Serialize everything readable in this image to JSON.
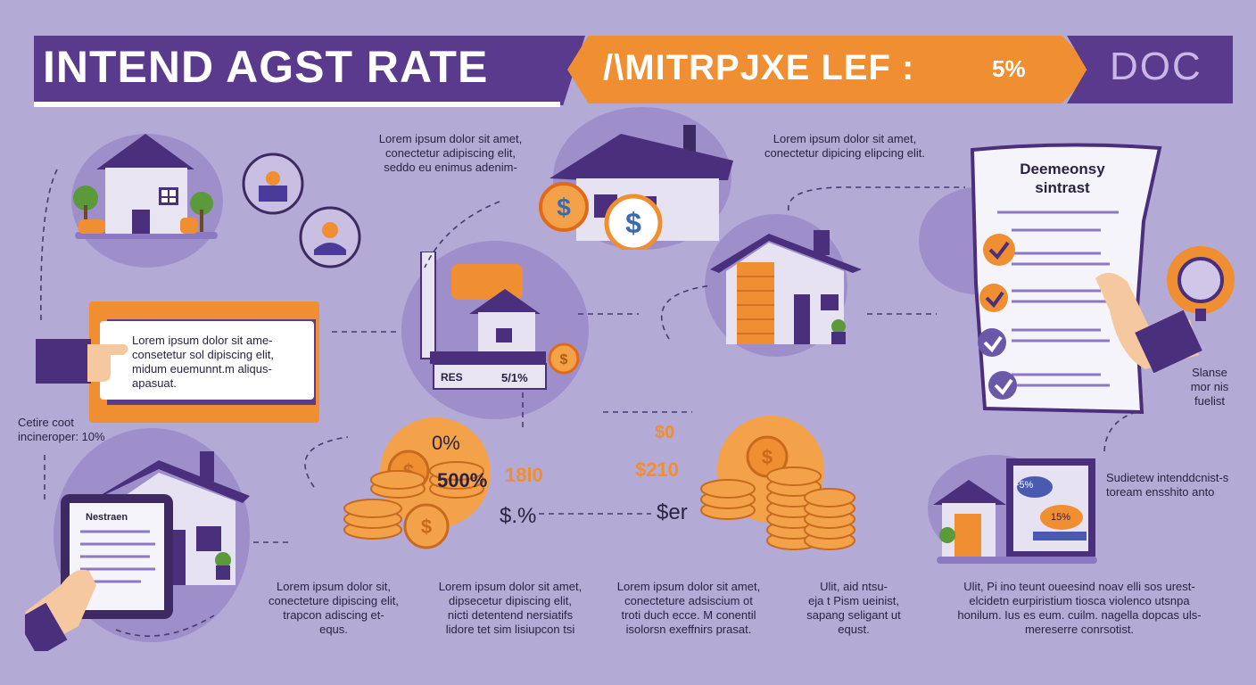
{
  "header": {
    "title": "INTEND AGST RATE",
    "subtitle": "/\\MITRPJXE LEF :",
    "rate": "5%",
    "right_label": "DOC"
  },
  "text_blocks": {
    "top_center": [
      "Lorem ipsum dolor sit amet,",
      "conectetur adipiscing elit,",
      "seddo eu enimus adenim-"
    ],
    "top_right": [
      "Lorem ipsum dolor sit amet,",
      "conectetur dipicing elipcing elit."
    ],
    "hand_card": [
      "Lorem ipsum dolor sit ame-",
      "consetetur sol dipiscing elit,",
      "midum euemunnt.m aliqus-",
      "apasuat."
    ],
    "left_label": [
      "Cetire coot",
      "incineroper: 10%"
    ],
    "bottom_1": [
      "Lorem ipsum dolor sit,",
      "conecteture dipiscing elit,",
      "trapcon adiscing et-",
      "equs."
    ],
    "bottom_2": [
      "Lorem ipsum dolor sit amet,",
      "dipsecetur dipiscing elit,",
      "nicti detentend nersiatifs",
      "lidore tet sim lisiupcon tsi"
    ],
    "bottom_3": [
      "Lorem ipsum dolor sit amet,",
      "conecteture adsiscium ot",
      "troti duch ecce. M conentil",
      "isolorsn exeffnirs prasat."
    ],
    "bottom_4": [
      "Ulit, aid ntsu-",
      "eja t Pism ueinist,",
      "sapang seligant ut",
      "equst."
    ],
    "bottom_5": [
      "Ulit, Pi ino teunt oueesind noav elli sos urest-",
      "elcidetn eurpiristium tiosca violenco utsnpa",
      "honilum. Ius es eum. cuilm. nagella dopcas uls-",
      "mereserre conrsotist."
    ],
    "right_side": [
      "Slanse",
      "mor nis",
      "fuelist"
    ],
    "right_bottom": [
      "Sudietew intenddcnist-s",
      "toream ensshito anto"
    ]
  },
  "document": {
    "title_line1": "Deemeonsy",
    "title_line2": "sintrast"
  },
  "tablet": {
    "title": "Nestraen"
  },
  "house_sign": {
    "left": "RES",
    "right": "5/1%"
  },
  "coin_labels": {
    "pct_top": "0%",
    "pct_mid": "500%",
    "pct_low": "$.%",
    "rate_a": "18l0",
    "rate_b": "$0",
    "rate_c": "$210",
    "rate_d": "$er"
  },
  "bubbles": {
    "a": "~5%",
    "b": "15%"
  },
  "colors": {
    "background": "#b3aad6",
    "purple": "#5a3a8c",
    "orange": "#f08e32",
    "text": "#2b2240"
  }
}
